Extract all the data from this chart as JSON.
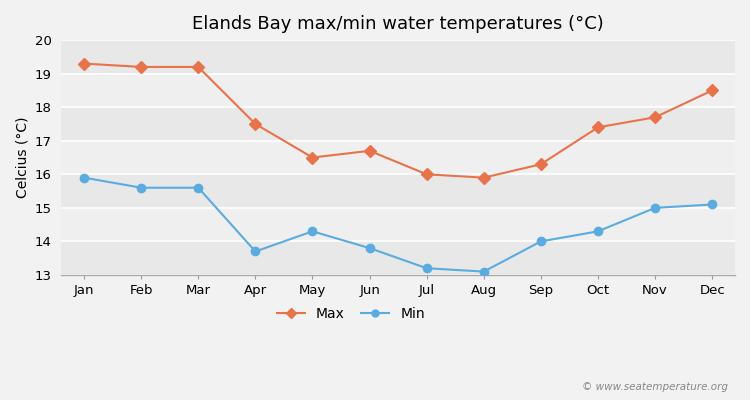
{
  "title": "Elands Bay max/min water temperatures (°C)",
  "ylabel": "Celcius (°C)",
  "months": [
    "Jan",
    "Feb",
    "Mar",
    "Apr",
    "May",
    "Jun",
    "Jul",
    "Aug",
    "Sep",
    "Oct",
    "Nov",
    "Dec"
  ],
  "max_temps": [
    19.3,
    19.2,
    19.2,
    17.5,
    16.5,
    16.7,
    16.0,
    15.9,
    16.3,
    17.4,
    17.7,
    18.5
  ],
  "min_temps": [
    15.9,
    15.6,
    15.6,
    13.7,
    14.3,
    13.8,
    13.2,
    13.1,
    14.0,
    14.3,
    15.0,
    15.1
  ],
  "max_color": "#e8734a",
  "min_color": "#5aace0",
  "background_color": "#f2f2f2",
  "band_light": "#f0f0f0",
  "band_dark": "#e0e0e0",
  "ylim": [
    13,
    20
  ],
  "yticks": [
    13,
    14,
    15,
    16,
    17,
    18,
    19,
    20
  ],
  "legend_max": "Max",
  "legend_min": "Min",
  "watermark": "© www.seatemperature.org",
  "title_fontsize": 13,
  "label_fontsize": 10,
  "tick_fontsize": 9.5
}
